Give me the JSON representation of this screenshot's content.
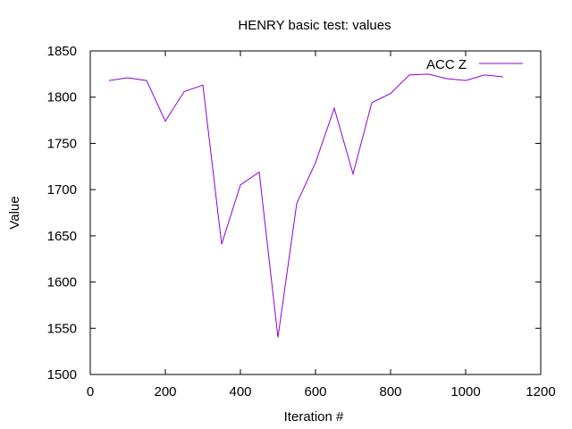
{
  "chart_data": {
    "type": "line",
    "title": "HENRY basic test: values",
    "xlabel": "Iteration #",
    "ylabel": "Value",
    "xlim": [
      0,
      1200
    ],
    "ylim": [
      1500,
      1850
    ],
    "xticks": [
      0,
      200,
      400,
      600,
      800,
      1000,
      1200
    ],
    "yticks": [
      1500,
      1550,
      1600,
      1650,
      1700,
      1750,
      1800,
      1850
    ],
    "grid": false,
    "legend_position": "top-right",
    "series": [
      {
        "name": "ACC Z",
        "color": "#9400d3",
        "x": [
          50,
          100,
          150,
          200,
          250,
          300,
          350,
          400,
          450,
          500,
          550,
          600,
          650,
          700,
          750,
          800,
          850,
          900,
          950,
          1000,
          1050,
          1100
        ],
        "y": [
          1818,
          1821,
          1818,
          1774,
          1806,
          1813,
          1641,
          1705,
          1719,
          1540,
          1685,
          1729,
          1788,
          1717,
          1794,
          1804,
          1824,
          1825,
          1820,
          1818,
          1824,
          1822
        ]
      }
    ]
  }
}
